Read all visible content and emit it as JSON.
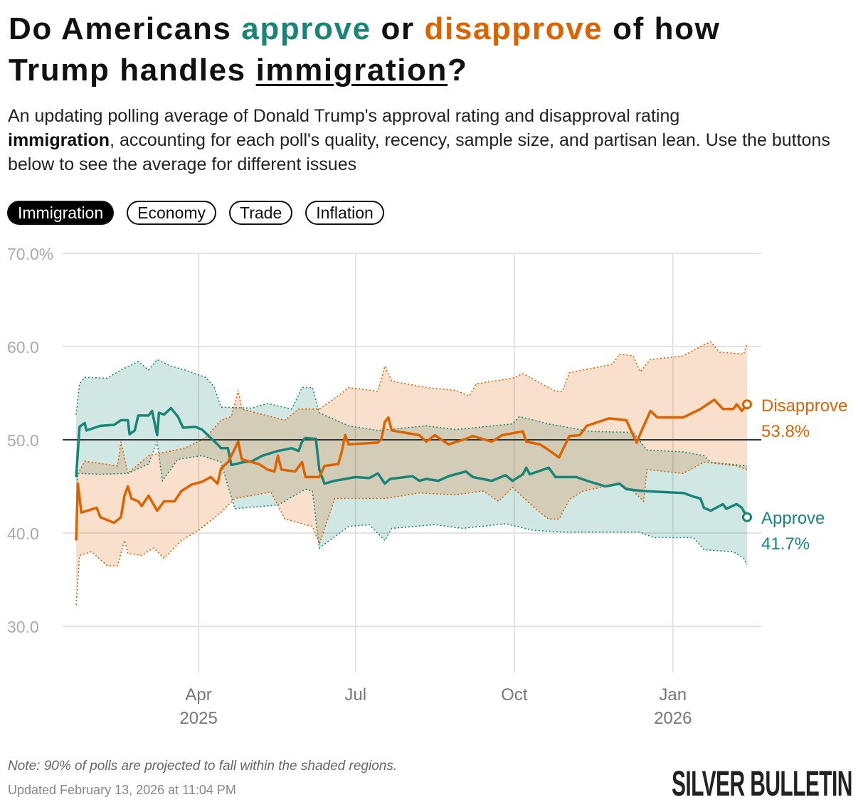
{
  "title": {
    "part1": "Do Americans ",
    "approve": "approve",
    "part2": " or ",
    "disapprove": "disapprove",
    "part3": " of how",
    "part4": "Trump handles ",
    "issue": "immigration",
    "part5": "?"
  },
  "subtitle": {
    "line1": "An updating polling average of Donald Trump's approval rating and disapproval rating",
    "issue": "immigration",
    "rest": ", accounting for each poll's quality, recency, sample size, and partisan lean. Use the buttons below to see the average for different issues"
  },
  "buttons": [
    {
      "label": "Immigration",
      "active": true
    },
    {
      "label": "Economy",
      "active": false
    },
    {
      "label": "Trade",
      "active": false
    },
    {
      "label": "Inflation",
      "active": false
    }
  ],
  "colors": {
    "approve": "#1a8577",
    "disapprove": "#dd6300"
  },
  "chart_data": {
    "type": "line",
    "x_unit": "days since 2025-01-20",
    "xlim": [
      0,
      389
    ],
    "ylim": [
      25,
      70
    ],
    "y_ticks": [
      {
        "value": 70,
        "label": "70.0%"
      },
      {
        "value": 60,
        "label": "60.0"
      },
      {
        "value": 50,
        "label": "50.0"
      },
      {
        "value": 40,
        "label": "40.0"
      },
      {
        "value": 30,
        "label": "30.0"
      }
    ],
    "x_ticks": [
      {
        "day": 71,
        "label": "Apr",
        "year": "2025"
      },
      {
        "day": 162,
        "label": "Jul",
        "year": ""
      },
      {
        "day": 254,
        "label": "Oct",
        "year": ""
      },
      {
        "day": 346,
        "label": "Jan",
        "year": "2026"
      }
    ],
    "reference_line": 50,
    "grid": true,
    "series": [
      {
        "name": "Approve",
        "key": "approve",
        "latest_label": "41.7%",
        "values": [
          [
            0,
            46.0
          ],
          [
            2,
            51.4
          ],
          [
            5,
            51.8
          ],
          [
            6,
            51.0
          ],
          [
            14,
            51.5
          ],
          [
            22,
            51.6
          ],
          [
            26,
            52.1
          ],
          [
            30,
            52.1
          ],
          [
            31,
            50.6
          ],
          [
            34,
            51.0
          ],
          [
            36,
            52.6
          ],
          [
            42,
            52.6
          ],
          [
            44,
            53.1
          ],
          [
            47,
            50.5
          ],
          [
            48,
            52.9
          ],
          [
            51,
            52.7
          ],
          [
            55,
            53.4
          ],
          [
            59,
            52.5
          ],
          [
            62,
            51.3
          ],
          [
            69,
            51.4
          ],
          [
            73,
            51.1
          ],
          [
            78,
            50.2
          ],
          [
            82,
            49.5
          ],
          [
            84,
            49.1
          ],
          [
            88,
            49.1
          ],
          [
            90,
            47.3
          ],
          [
            97,
            47.6
          ],
          [
            102,
            47.7
          ],
          [
            108,
            48.3
          ],
          [
            117,
            48.8
          ],
          [
            125,
            49.1
          ],
          [
            129,
            48.8
          ],
          [
            131,
            49.8
          ],
          [
            133,
            50.2
          ],
          [
            139,
            50.1
          ],
          [
            141,
            46.8
          ],
          [
            144,
            45.3
          ],
          [
            150,
            45.6
          ],
          [
            162,
            46.0
          ],
          [
            170,
            45.9
          ],
          [
            175,
            46.4
          ],
          [
            179,
            45.3
          ],
          [
            182,
            45.8
          ],
          [
            195,
            46.1
          ],
          [
            199,
            45.6
          ],
          [
            203,
            45.8
          ],
          [
            210,
            45.6
          ],
          [
            216,
            46.1
          ],
          [
            226,
            46.6
          ],
          [
            230,
            46.0
          ],
          [
            241,
            45.6
          ],
          [
            249,
            46.2
          ],
          [
            253,
            45.6
          ],
          [
            259,
            46.3
          ],
          [
            261,
            47.0
          ],
          [
            263,
            46.3
          ],
          [
            274,
            47.0
          ],
          [
            278,
            46.0
          ],
          [
            290,
            46.0
          ],
          [
            298,
            45.5
          ],
          [
            307,
            45.0
          ],
          [
            315,
            45.3
          ],
          [
            319,
            44.7
          ],
          [
            329,
            44.5
          ],
          [
            340,
            44.4
          ],
          [
            352,
            44.3
          ],
          [
            358,
            43.9
          ],
          [
            362,
            43.7
          ],
          [
            364,
            42.7
          ],
          [
            368,
            42.4
          ],
          [
            375,
            43.1
          ],
          [
            377,
            42.6
          ],
          [
            383,
            43.1
          ],
          [
            386,
            42.7
          ],
          [
            389,
            41.7
          ]
        ],
        "upper": [
          [
            0,
            52.7
          ],
          [
            2,
            56.0
          ],
          [
            5,
            56.7
          ],
          [
            18,
            56.6
          ],
          [
            26,
            57.5
          ],
          [
            36,
            58.4
          ],
          [
            42,
            57.5
          ],
          [
            47,
            58.6
          ],
          [
            55,
            57.9
          ],
          [
            63,
            57.5
          ],
          [
            75,
            56.7
          ],
          [
            80,
            55.7
          ],
          [
            84,
            53.5
          ],
          [
            102,
            53.4
          ],
          [
            111,
            53.9
          ],
          [
            125,
            53.3
          ],
          [
            131,
            55.6
          ],
          [
            137,
            55.6
          ],
          [
            141,
            52.9
          ],
          [
            158,
            51.5
          ],
          [
            175,
            51.0
          ],
          [
            203,
            51.5
          ],
          [
            220,
            51.1
          ],
          [
            253,
            51.7
          ],
          [
            257,
            52.5
          ],
          [
            274,
            51.7
          ],
          [
            298,
            50.9
          ],
          [
            323,
            50.8
          ],
          [
            331,
            48.9
          ],
          [
            352,
            48.7
          ],
          [
            364,
            48.3
          ],
          [
            368,
            47.6
          ],
          [
            389,
            47.2
          ]
        ],
        "lower": [
          [
            0,
            40.3
          ],
          [
            1,
            46.4
          ],
          [
            14,
            46.3
          ],
          [
            30,
            46.4
          ],
          [
            42,
            47.4
          ],
          [
            47,
            49.8
          ],
          [
            50,
            45.6
          ],
          [
            59,
            47.9
          ],
          [
            73,
            48.3
          ],
          [
            84,
            47.6
          ],
          [
            88,
            45.1
          ],
          [
            92,
            42.6
          ],
          [
            104,
            42.8
          ],
          [
            117,
            43.0
          ],
          [
            133,
            44.7
          ],
          [
            137,
            44.5
          ],
          [
            141,
            38.4
          ],
          [
            158,
            40.7
          ],
          [
            170,
            40.9
          ],
          [
            179,
            39.2
          ],
          [
            183,
            40.5
          ],
          [
            208,
            40.9
          ],
          [
            224,
            40.5
          ],
          [
            249,
            41.0
          ],
          [
            265,
            40.3
          ],
          [
            282,
            40.1
          ],
          [
            307,
            40.1
          ],
          [
            327,
            40.1
          ],
          [
            335,
            39.5
          ],
          [
            358,
            39.5
          ],
          [
            364,
            38.2
          ],
          [
            381,
            38.0
          ],
          [
            387,
            37.3
          ],
          [
            389,
            36.6
          ]
        ]
      },
      {
        "name": "Disapprove",
        "key": "disapprove",
        "latest_label": "53.8%",
        "values": [
          [
            0,
            39.2
          ],
          [
            1,
            45.3
          ],
          [
            3,
            42.2
          ],
          [
            12,
            42.7
          ],
          [
            14,
            41.7
          ],
          [
            22,
            41.1
          ],
          [
            26,
            41.7
          ],
          [
            28,
            44.0
          ],
          [
            30,
            45.0
          ],
          [
            32,
            43.7
          ],
          [
            36,
            43.4
          ],
          [
            38,
            42.9
          ],
          [
            42,
            44.0
          ],
          [
            47,
            42.4
          ],
          [
            51,
            43.4
          ],
          [
            57,
            43.4
          ],
          [
            61,
            44.5
          ],
          [
            67,
            45.2
          ],
          [
            73,
            45.5
          ],
          [
            78,
            46.0
          ],
          [
            82,
            45.3
          ],
          [
            84,
            46.9
          ],
          [
            88,
            47.6
          ],
          [
            90,
            48.3
          ],
          [
            94,
            49.8
          ],
          [
            96,
            47.9
          ],
          [
            106,
            47.4
          ],
          [
            111,
            46.8
          ],
          [
            115,
            46.6
          ],
          [
            117,
            48.3
          ],
          [
            119,
            46.8
          ],
          [
            127,
            46.6
          ],
          [
            131,
            47.6
          ],
          [
            133,
            46.0
          ],
          [
            141,
            46.0
          ],
          [
            144,
            47.2
          ],
          [
            152,
            47.4
          ],
          [
            154,
            48.7
          ],
          [
            156,
            50.5
          ],
          [
            158,
            49.5
          ],
          [
            175,
            49.7
          ],
          [
            177,
            50.1
          ],
          [
            179,
            51.9
          ],
          [
            181,
            52.4
          ],
          [
            183,
            51.0
          ],
          [
            199,
            50.5
          ],
          [
            203,
            49.8
          ],
          [
            208,
            50.5
          ],
          [
            216,
            49.5
          ],
          [
            226,
            50.1
          ],
          [
            230,
            50.4
          ],
          [
            241,
            49.8
          ],
          [
            247,
            50.5
          ],
          [
            259,
            50.9
          ],
          [
            261,
            49.8
          ],
          [
            269,
            49.5
          ],
          [
            274,
            48.9
          ],
          [
            280,
            48.1
          ],
          [
            282,
            48.9
          ],
          [
            286,
            50.4
          ],
          [
            292,
            50.5
          ],
          [
            296,
            51.5
          ],
          [
            309,
            52.3
          ],
          [
            319,
            52.1
          ],
          [
            323,
            50.5
          ],
          [
            325,
            49.7
          ],
          [
            327,
            50.6
          ],
          [
            333,
            53.1
          ],
          [
            337,
            52.4
          ],
          [
            352,
            52.4
          ],
          [
            362,
            53.3
          ],
          [
            366,
            53.8
          ],
          [
            370,
            54.3
          ],
          [
            375,
            53.3
          ],
          [
            381,
            53.3
          ],
          [
            383,
            53.8
          ],
          [
            386,
            53.1
          ],
          [
            389,
            53.8
          ]
        ],
        "upper": [
          [
            0,
            46.0
          ],
          [
            5,
            47.7
          ],
          [
            24,
            47.2
          ],
          [
            26,
            49.8
          ],
          [
            30,
            46.4
          ],
          [
            42,
            48.3
          ],
          [
            63,
            49.1
          ],
          [
            75,
            50.2
          ],
          [
            84,
            52.1
          ],
          [
            90,
            52.5
          ],
          [
            94,
            55.3
          ],
          [
            96,
            53.3
          ],
          [
            121,
            52.1
          ],
          [
            129,
            53.3
          ],
          [
            141,
            53.3
          ],
          [
            154,
            55.0
          ],
          [
            158,
            55.6
          ],
          [
            175,
            55.2
          ],
          [
            179,
            57.9
          ],
          [
            183,
            56.3
          ],
          [
            203,
            55.6
          ],
          [
            220,
            55.3
          ],
          [
            228,
            54.7
          ],
          [
            232,
            56.0
          ],
          [
            253,
            56.6
          ],
          [
            259,
            57.1
          ],
          [
            278,
            55.2
          ],
          [
            282,
            55.2
          ],
          [
            286,
            57.2
          ],
          [
            311,
            58.1
          ],
          [
            315,
            59.2
          ],
          [
            323,
            59.0
          ],
          [
            327,
            57.3
          ],
          [
            333,
            58.6
          ],
          [
            352,
            59.0
          ],
          [
            364,
            60.2
          ],
          [
            368,
            60.5
          ],
          [
            373,
            59.4
          ],
          [
            387,
            59.2
          ],
          [
            389,
            60.3
          ]
        ],
        "lower": [
          [
            0,
            32.3
          ],
          [
            2,
            37.6
          ],
          [
            9,
            38.0
          ],
          [
            18,
            36.5
          ],
          [
            24,
            36.5
          ],
          [
            28,
            39.2
          ],
          [
            30,
            37.8
          ],
          [
            38,
            37.6
          ],
          [
            45,
            38.4
          ],
          [
            51,
            37.3
          ],
          [
            61,
            39.2
          ],
          [
            71,
            40.3
          ],
          [
            84,
            42.2
          ],
          [
            92,
            43.7
          ],
          [
            113,
            44.4
          ],
          [
            121,
            41.5
          ],
          [
            137,
            40.7
          ],
          [
            141,
            38.8
          ],
          [
            150,
            43.7
          ],
          [
            179,
            43.7
          ],
          [
            199,
            44.3
          ],
          [
            220,
            44.1
          ],
          [
            236,
            44.5
          ],
          [
            245,
            43.4
          ],
          [
            253,
            44.9
          ],
          [
            265,
            42.8
          ],
          [
            274,
            41.5
          ],
          [
            280,
            41.5
          ],
          [
            286,
            43.6
          ],
          [
            294,
            44.5
          ],
          [
            315,
            45.3
          ],
          [
            323,
            44.5
          ],
          [
            329,
            43.4
          ],
          [
            331,
            46.8
          ],
          [
            352,
            46.4
          ],
          [
            364,
            47.6
          ],
          [
            383,
            47.2
          ],
          [
            389,
            46.8
          ]
        ]
      }
    ]
  },
  "footer": {
    "note": "Note: 90% of polls are projected to fall within the shaded regions.",
    "updated": "Updated February 13, 2026 at 11:04 PM",
    "logo": "SILVER BULLETIN"
  }
}
